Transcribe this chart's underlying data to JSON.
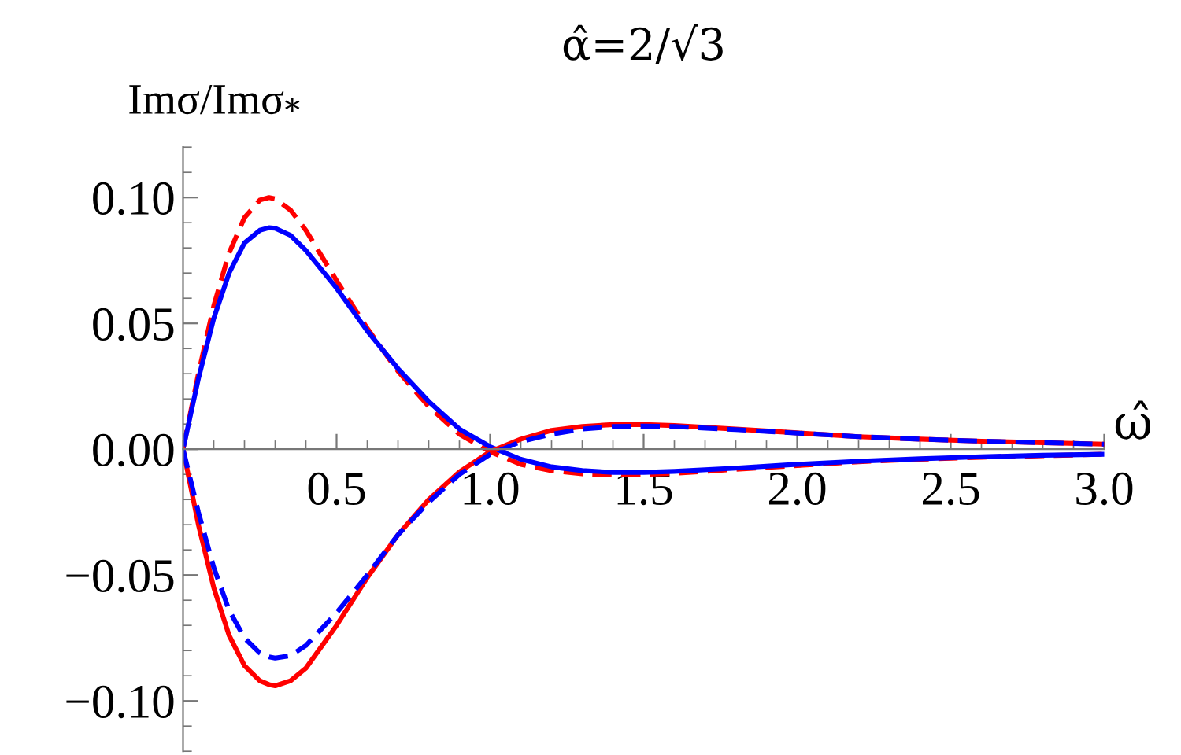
{
  "chart_data": {
    "type": "line",
    "title": "α̂=2/√3",
    "xlabel": "ω̂",
    "ylabel": "Imσ/Imσ$_{*}$",
    "x": [
      0,
      0.05,
      0.1,
      0.15,
      0.2,
      0.25,
      0.28,
      0.3,
      0.35,
      0.4,
      0.5,
      0.6,
      0.7,
      0.8,
      0.9,
      1.0,
      1.1,
      1.2,
      1.3,
      1.4,
      1.5,
      1.6,
      1.8,
      2.0,
      2.2,
      2.4,
      2.6,
      2.8,
      3.0
    ],
    "series": [
      {
        "color": "#ff0000",
        "line_style": "dashed",
        "values": [
          0,
          0.03,
          0.057,
          0.078,
          0.092,
          0.099,
          0.1,
          0.0995,
          0.095,
          0.087,
          0.067,
          0.048,
          0.031,
          0.017,
          0.006,
          -0.001,
          -0.006,
          -0.0085,
          -0.0098,
          -0.0102,
          -0.01,
          -0.0096,
          -0.008,
          -0.0065,
          -0.005,
          -0.004,
          -0.0032,
          -0.0026,
          -0.002
        ]
      },
      {
        "color": "#0000ff",
        "line_style": "solid",
        "values": [
          0,
          0.028,
          0.052,
          0.07,
          0.082,
          0.087,
          0.088,
          0.0878,
          0.085,
          0.079,
          0.064,
          0.047,
          0.032,
          0.019,
          0.008,
          0.001,
          -0.004,
          -0.007,
          -0.0085,
          -0.0092,
          -0.0092,
          -0.0088,
          -0.0075,
          -0.006,
          -0.0048,
          -0.0038,
          -0.003,
          -0.0024,
          -0.002
        ]
      },
      {
        "color": "#ff0000",
        "line_style": "solid",
        "values": [
          0,
          -0.03,
          -0.055,
          -0.074,
          -0.086,
          -0.092,
          -0.0935,
          -0.094,
          -0.092,
          -0.087,
          -0.07,
          -0.051,
          -0.034,
          -0.02,
          -0.009,
          -0.001,
          0.004,
          0.0075,
          0.009,
          0.0098,
          0.0098,
          0.0094,
          0.008,
          0.0065,
          0.005,
          0.004,
          0.0032,
          0.0026,
          0.002
        ]
      },
      {
        "color": "#0000ff",
        "line_style": "dashed",
        "values": [
          0,
          -0.025,
          -0.047,
          -0.064,
          -0.075,
          -0.081,
          -0.0825,
          -0.083,
          -0.082,
          -0.078,
          -0.065,
          -0.05,
          -0.034,
          -0.021,
          -0.01,
          -0.002,
          0.003,
          0.006,
          0.008,
          0.009,
          0.0092,
          0.009,
          0.0078,
          0.0064,
          0.005,
          0.004,
          0.0032,
          0.0026,
          0.002
        ]
      }
    ],
    "xlim": [
      0,
      3.0
    ],
    "ylim": [
      -0.12,
      0.12
    ],
    "xticks": [
      {
        "value": 0.5,
        "label": "0.5"
      },
      {
        "value": 1.0,
        "label": "1.0"
      },
      {
        "value": 1.5,
        "label": "1.5"
      },
      {
        "value": 2.0,
        "label": "2.0"
      },
      {
        "value": 2.5,
        "label": "2.5"
      },
      {
        "value": 3.0,
        "label": "3.0"
      }
    ],
    "yticks": [
      {
        "value": -0.1,
        "label": "−0.10"
      },
      {
        "value": -0.05,
        "label": "−0.05"
      },
      {
        "value": 0.0,
        "label": "0.00"
      },
      {
        "value": 0.05,
        "label": "0.05"
      },
      {
        "value": 0.1,
        "label": "0.10"
      }
    ],
    "grid": false,
    "legend": false,
    "marker": "none"
  }
}
